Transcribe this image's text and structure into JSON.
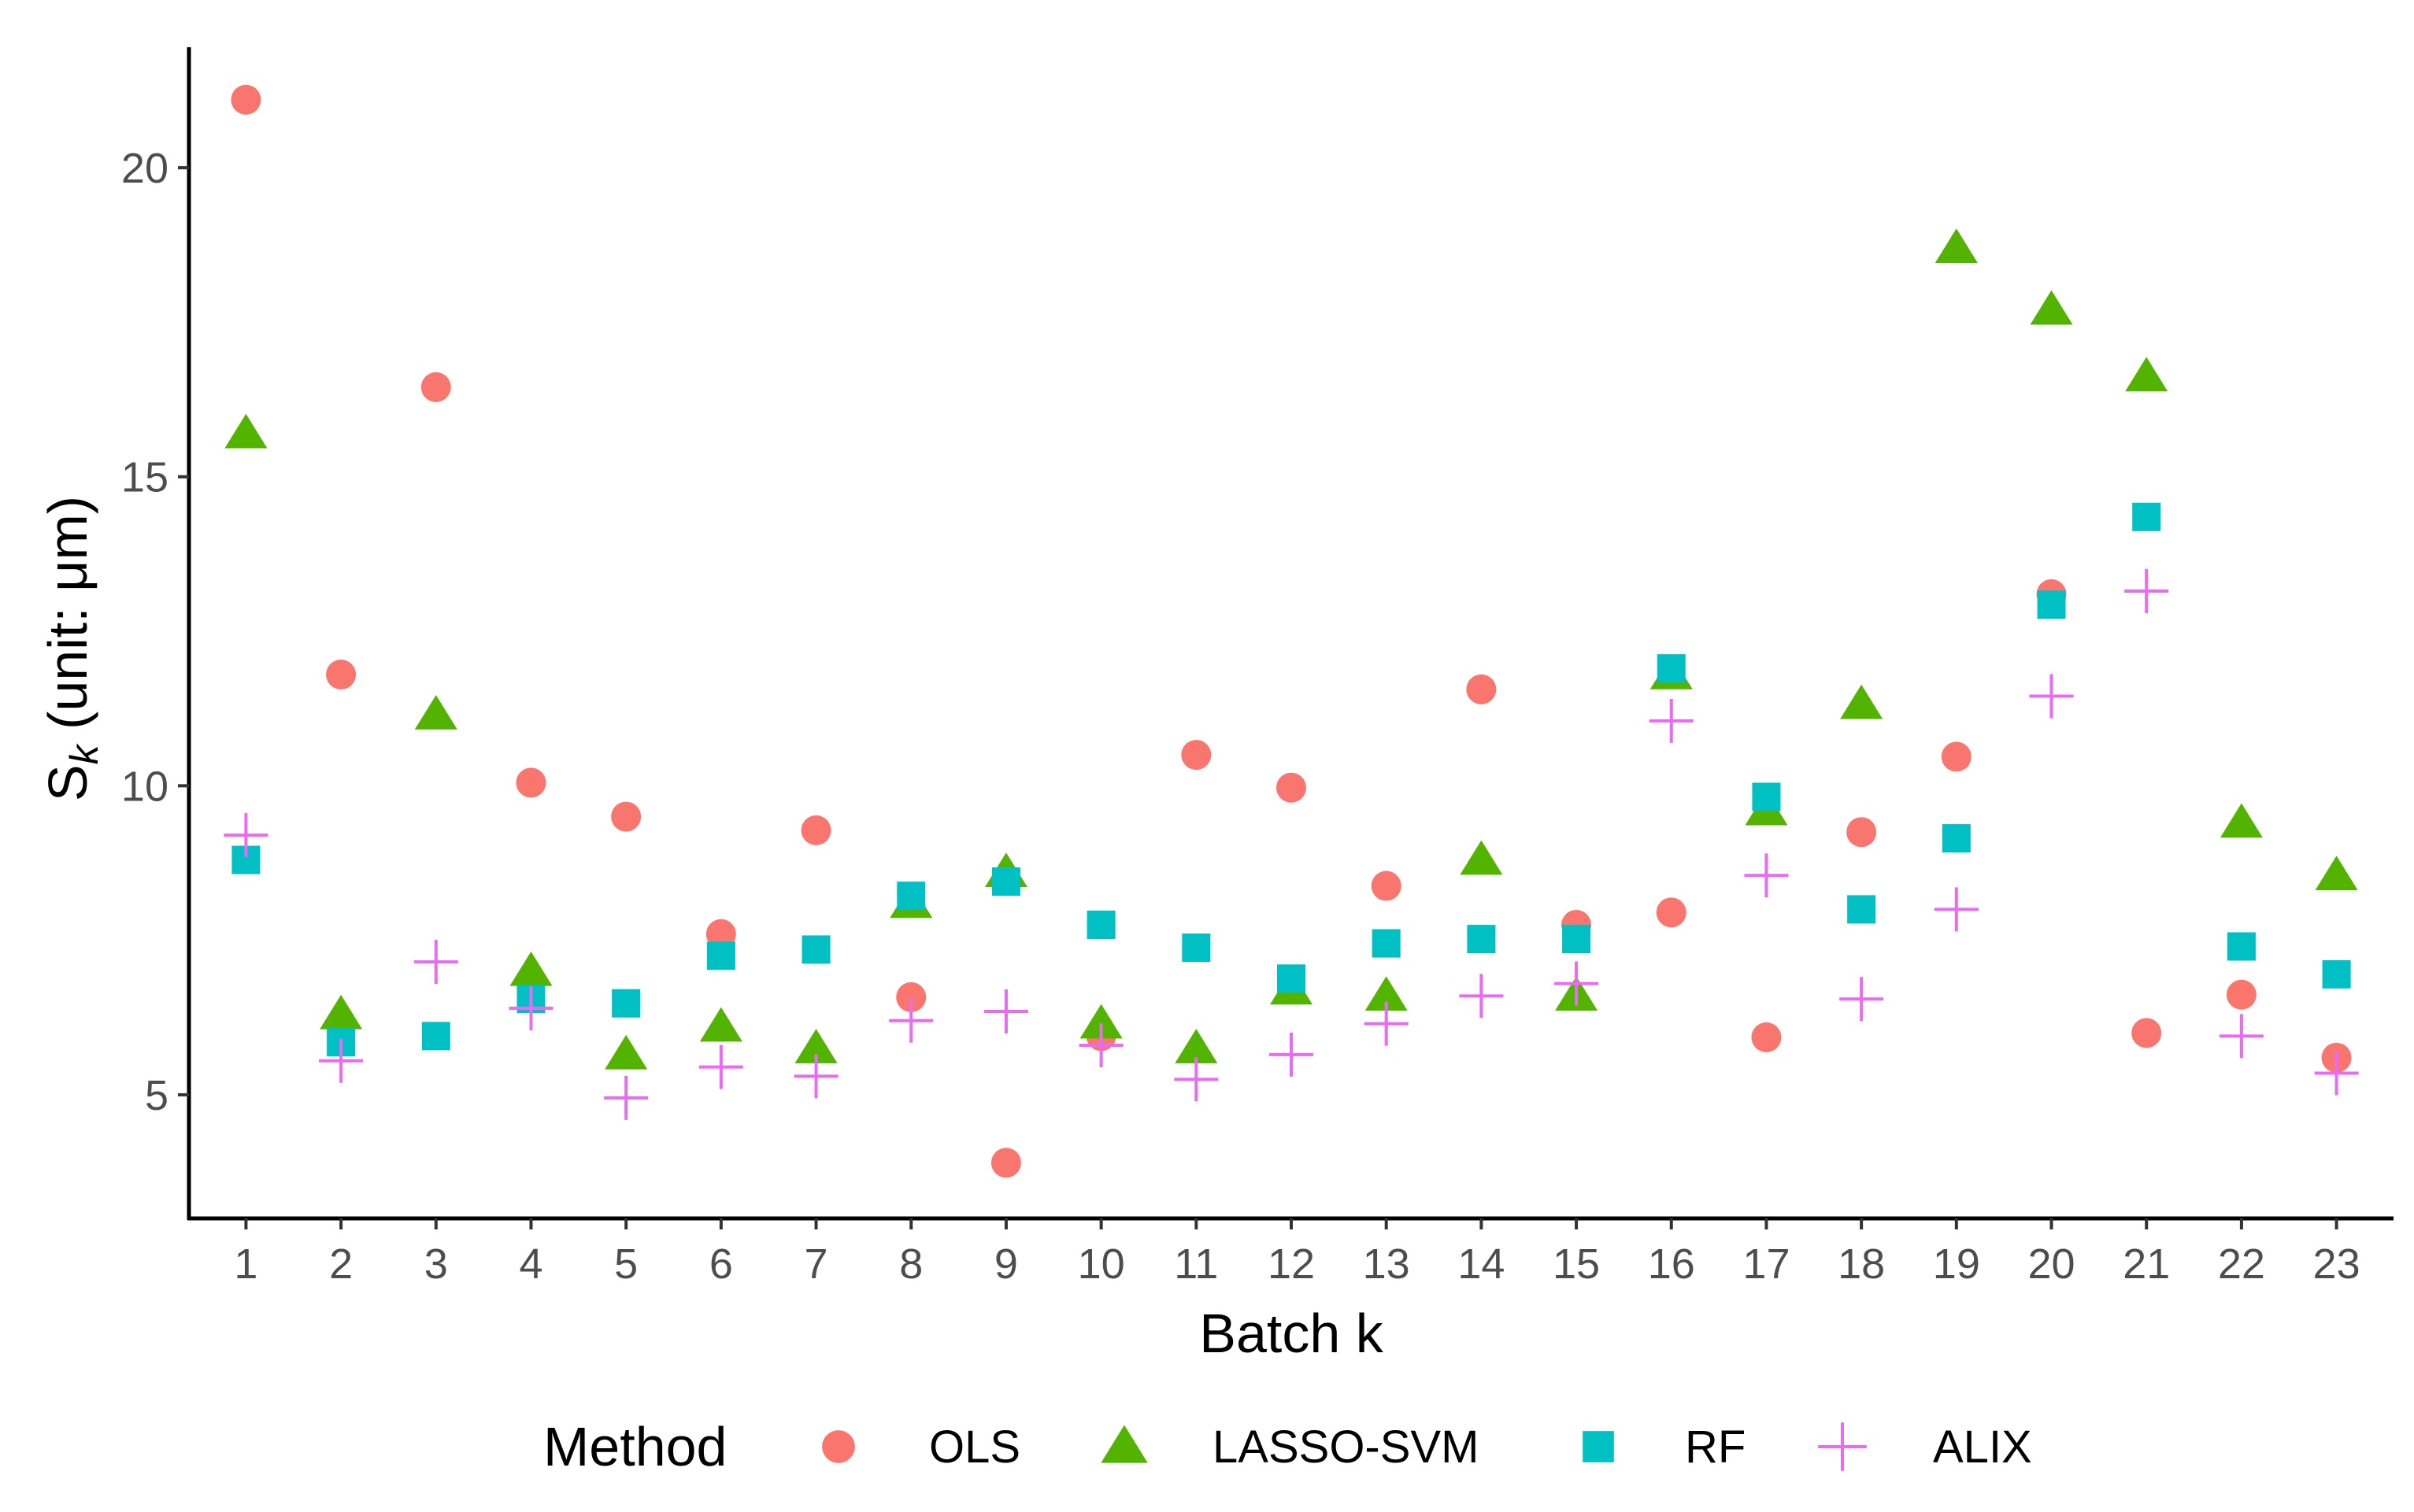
{
  "chart_data": {
    "type": "scatter",
    "xlabel": "Batch k",
    "ylabel": {
      "main": "S",
      "sub": "k",
      "rest": " (unit: μm)"
    },
    "x": [
      1,
      2,
      3,
      4,
      5,
      6,
      7,
      8,
      9,
      10,
      11,
      12,
      13,
      14,
      15,
      16,
      17,
      18,
      19,
      20,
      21,
      22,
      23
    ],
    "x_ticks": [
      "1",
      "2",
      "3",
      "4",
      "5",
      "6",
      "7",
      "8",
      "9",
      "10",
      "11",
      "12",
      "13",
      "14",
      "15",
      "16",
      "17",
      "18",
      "19",
      "20",
      "21",
      "22",
      "23"
    ],
    "y_ticks": [
      5,
      10,
      15,
      20
    ],
    "ylim": [
      3.0,
      21.95
    ],
    "xlim": [
      0.4,
      23.6
    ],
    "grid": false,
    "legend_position": "bottom",
    "legend_title": "Method",
    "series": [
      {
        "name": "OLS",
        "marker": "circle",
        "color": "#F8766D",
        "values": [
          21.1,
          11.8,
          16.45,
          10.05,
          9.5,
          7.6,
          9.28,
          6.58,
          3.9,
          5.95,
          10.5,
          9.97,
          8.38,
          11.56,
          7.75,
          7.95,
          5.93,
          9.25,
          10.47,
          13.1,
          6.0,
          6.62,
          5.6
        ]
      },
      {
        "name": "LASSO-SVM",
        "marker": "triangle",
        "color": "#53B400",
        "values": [
          15.7,
          6.3,
          11.15,
          7.0,
          5.65,
          6.1,
          5.75,
          8.1,
          8.6,
          6.15,
          5.75,
          6.7,
          6.6,
          8.8,
          6.6,
          11.8,
          9.6,
          11.32,
          18.7,
          17.7,
          16.62,
          9.4,
          8.55
        ]
      },
      {
        "name": "RF",
        "marker": "square",
        "color": "#00C0C4",
        "values": [
          8.8,
          5.85,
          5.95,
          6.55,
          6.48,
          7.25,
          7.35,
          8.22,
          8.45,
          7.75,
          7.38,
          6.88,
          7.45,
          7.52,
          7.52,
          11.9,
          9.82,
          8.0,
          9.15,
          12.93,
          14.35,
          7.4,
          6.95
        ]
      },
      {
        "name": "ALIX",
        "marker": "cross",
        "color": "#E76BF3",
        "values": [
          9.2,
          5.55,
          7.15,
          6.4,
          4.95,
          5.45,
          5.3,
          6.2,
          6.35,
          5.8,
          5.25,
          5.65,
          6.15,
          6.6,
          6.8,
          11.05,
          8.55,
          6.55,
          8.0,
          11.45,
          13.15,
          5.95,
          5.35
        ]
      }
    ]
  }
}
